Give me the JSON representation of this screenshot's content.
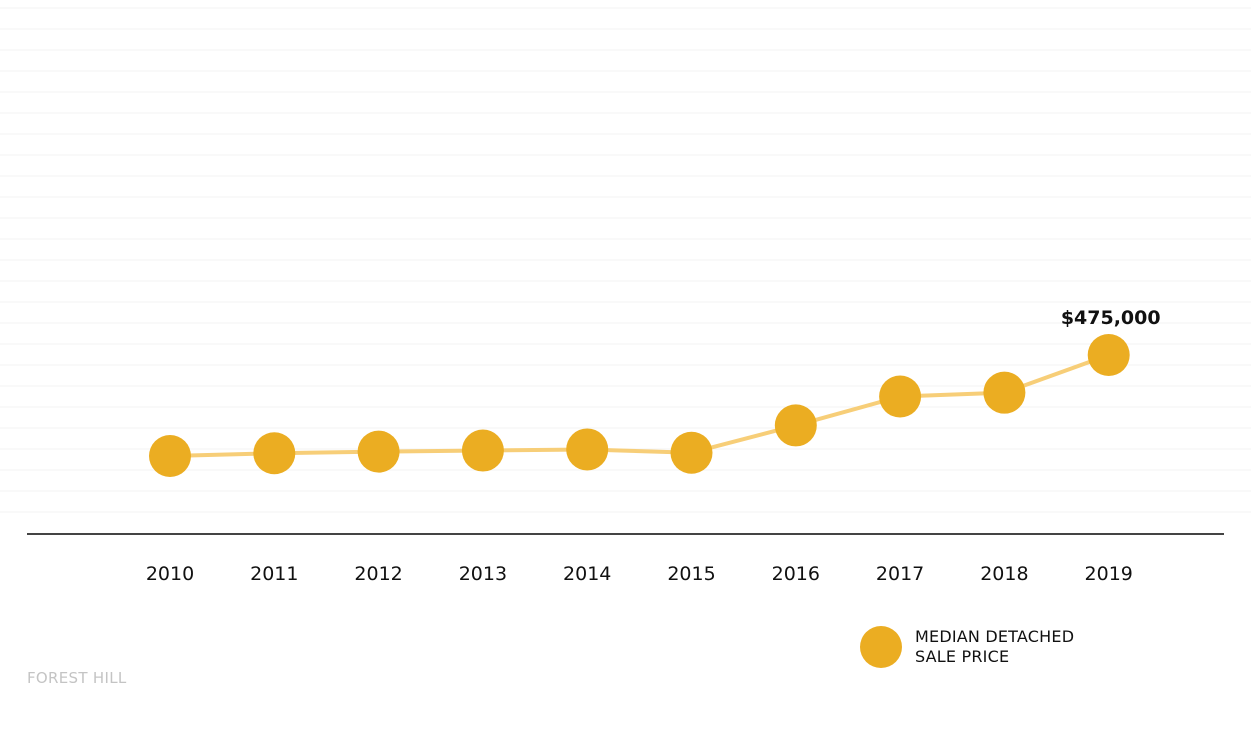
{
  "chart_data": {
    "type": "line",
    "x": [
      "2010",
      "2011",
      "2012",
      "2013",
      "2014",
      "2015",
      "2016",
      "2017",
      "2018",
      "2019"
    ],
    "series": [
      {
        "name": "MEDIAN DETACHED SALE PRICE",
        "values": [
          290000,
          295000,
          298000,
          300000,
          302000,
          296000,
          346000,
          399000,
          406000,
          475000
        ]
      }
    ],
    "annotations": [
      {
        "x": "2019",
        "text": "$475,000"
      }
    ],
    "grid": true,
    "legend_position": "bottom-right",
    "colors": {
      "marker": "#EBAD22",
      "line": "#F7CE78",
      "axis": "#444444",
      "grid": "#f3f3f3"
    }
  },
  "legend": {
    "line1": "MEDIAN DETACHED",
    "line2": "SALE PRICE"
  },
  "footer": {
    "neighbourhood": "FOREST HILL"
  }
}
